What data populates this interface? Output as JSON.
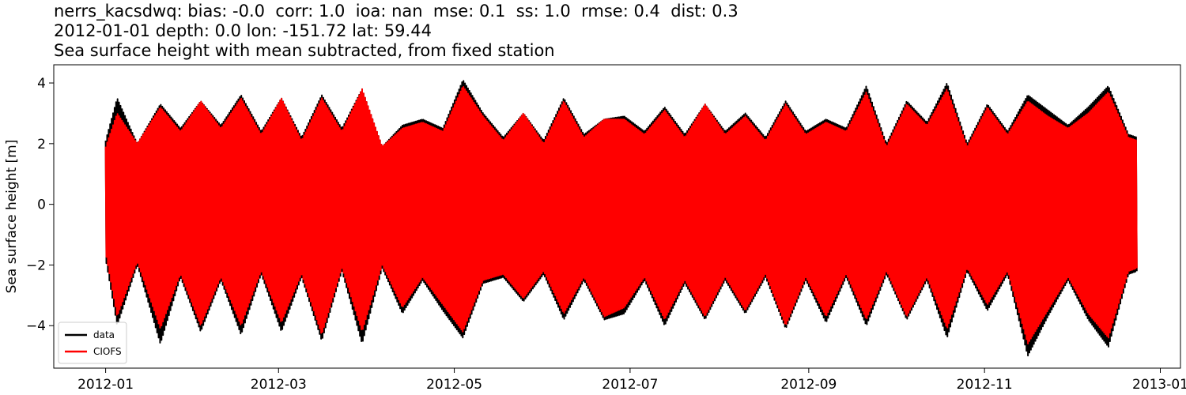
{
  "chart_data": {
    "type": "line",
    "title_lines": [
      "nerrs_kacsdwq: bias: -0.0  corr: 1.0  ioa: nan  mse: 0.1  ss: 1.0  rmse: 0.4  dist: 0.3",
      "2012-01-01 depth: 0.0 lon: -151.72 lat: 59.44",
      "Sea surface height with mean subtracted, from fixed station"
    ],
    "xlabel": "",
    "ylabel": "Sea surface height [m]",
    "x_range": [
      "2011-12-14",
      "2013-01-08"
    ],
    "ylim": [
      -5.4,
      4.6
    ],
    "x_tick_labels": [
      "2012-01",
      "2012-03",
      "2012-05",
      "2012-07",
      "2012-09",
      "2012-11",
      "2013-01"
    ],
    "x_tick_dates": [
      "2012-01-01",
      "2012-03-01",
      "2012-05-01",
      "2012-07-01",
      "2012-09-01",
      "2012-11-01",
      "2013-01-01"
    ],
    "y_ticks": [
      -4,
      -2,
      0,
      2,
      4
    ],
    "y_tick_labels": [
      "−4",
      "−2",
      "0",
      "2",
      "4"
    ],
    "grid": false,
    "legend": {
      "position": "bottom-left"
    },
    "series": [
      {
        "name": "data",
        "color": "#000000",
        "envelope_dates": [
          "2012-01-01",
          "2012-01-05",
          "2012-01-12",
          "2012-01-20",
          "2012-01-27",
          "2012-02-03",
          "2012-02-10",
          "2012-02-17",
          "2012-02-24",
          "2012-03-02",
          "2012-03-09",
          "2012-03-16",
          "2012-03-23",
          "2012-03-30",
          "2012-04-06",
          "2012-04-13",
          "2012-04-20",
          "2012-04-27",
          "2012-05-04",
          "2012-05-11",
          "2012-05-18",
          "2012-05-25",
          "2012-06-01",
          "2012-06-08",
          "2012-06-15",
          "2012-06-22",
          "2012-06-29",
          "2012-07-06",
          "2012-07-13",
          "2012-07-20",
          "2012-07-27",
          "2012-08-03",
          "2012-08-10",
          "2012-08-17",
          "2012-08-24",
          "2012-08-31",
          "2012-09-07",
          "2012-09-14",
          "2012-09-21",
          "2012-09-28",
          "2012-10-05",
          "2012-10-12",
          "2012-10-19",
          "2012-10-26",
          "2012-11-02",
          "2012-11-09",
          "2012-11-16",
          "2012-11-23",
          "2012-11-30",
          "2012-12-07",
          "2012-12-14",
          "2012-12-21",
          "2012-12-24"
        ],
        "upper": [
          2.1,
          3.5,
          2.0,
          3.3,
          2.5,
          3.4,
          2.6,
          3.6,
          2.4,
          3.5,
          2.2,
          3.6,
          2.5,
          3.8,
          1.9,
          2.6,
          2.8,
          2.5,
          4.1,
          3.0,
          2.2,
          3.0,
          2.1,
          3.5,
          2.3,
          2.8,
          2.9,
          2.4,
          3.2,
          2.3,
          3.3,
          2.4,
          3.0,
          2.2,
          3.4,
          2.4,
          2.8,
          2.5,
          3.9,
          2.0,
          3.4,
          2.7,
          4.0,
          2.0,
          3.3,
          2.4,
          3.6,
          3.1,
          2.6,
          3.2,
          3.9,
          2.3,
          2.2
        ],
        "lower": [
          -1.8,
          -4.0,
          -2.0,
          -4.6,
          -2.4,
          -4.2,
          -2.5,
          -4.3,
          -2.3,
          -4.2,
          -2.4,
          -4.5,
          -2.2,
          -4.6,
          -2.1,
          -3.6,
          -2.5,
          -3.5,
          -4.4,
          -2.6,
          -2.4,
          -3.2,
          -2.3,
          -3.8,
          -2.5,
          -3.8,
          -3.6,
          -2.5,
          -4.0,
          -2.6,
          -3.8,
          -2.5,
          -3.6,
          -2.4,
          -4.1,
          -2.5,
          -3.9,
          -2.4,
          -4.0,
          -2.3,
          -3.8,
          -2.5,
          -4.4,
          -2.2,
          -3.5,
          -2.3,
          -5.0,
          -3.7,
          -2.5,
          -3.8,
          -4.7,
          -2.3,
          -2.2
        ]
      },
      {
        "name": "CIOFS",
        "color": "#ff0000",
        "envelope_dates": [
          "2012-01-01",
          "2012-01-05",
          "2012-01-12",
          "2012-01-20",
          "2012-01-27",
          "2012-02-03",
          "2012-02-10",
          "2012-02-17",
          "2012-02-24",
          "2012-03-02",
          "2012-03-09",
          "2012-03-16",
          "2012-03-23",
          "2012-03-30",
          "2012-04-06",
          "2012-04-13",
          "2012-04-20",
          "2012-04-27",
          "2012-05-04",
          "2012-05-11",
          "2012-05-18",
          "2012-05-25",
          "2012-06-01",
          "2012-06-08",
          "2012-06-15",
          "2012-06-22",
          "2012-06-29",
          "2012-07-06",
          "2012-07-13",
          "2012-07-20",
          "2012-07-27",
          "2012-08-03",
          "2012-08-10",
          "2012-08-17",
          "2012-08-24",
          "2012-08-31",
          "2012-09-07",
          "2012-09-14",
          "2012-09-21",
          "2012-09-28",
          "2012-10-05",
          "2012-10-12",
          "2012-10-19",
          "2012-10-26",
          "2012-11-02",
          "2012-11-09",
          "2012-11-16",
          "2012-11-23",
          "2012-11-30",
          "2012-12-07",
          "2012-12-14",
          "2012-12-21",
          "2012-12-24"
        ],
        "upper": [
          1.9,
          3.0,
          2.0,
          3.2,
          2.4,
          3.4,
          2.5,
          3.5,
          2.3,
          3.5,
          2.1,
          3.5,
          2.4,
          3.8,
          1.9,
          2.5,
          2.7,
          2.4,
          3.9,
          2.9,
          2.1,
          3.0,
          2.0,
          3.4,
          2.2,
          2.8,
          2.8,
          2.3,
          3.1,
          2.2,
          3.3,
          2.3,
          2.9,
          2.1,
          3.3,
          2.3,
          2.7,
          2.4,
          3.7,
          1.9,
          3.3,
          2.6,
          3.8,
          1.9,
          3.2,
          2.3,
          3.4,
          2.9,
          2.5,
          3.0,
          3.7,
          2.2,
          2.1
        ],
        "lower": [
          -1.6,
          -3.7,
          -1.9,
          -4.1,
          -2.3,
          -4.0,
          -2.4,
          -4.0,
          -2.2,
          -3.9,
          -2.3,
          -4.3,
          -2.1,
          -4.2,
          -2.0,
          -3.4,
          -2.4,
          -3.3,
          -4.2,
          -2.5,
          -2.3,
          -3.1,
          -2.2,
          -3.6,
          -2.4,
          -3.7,
          -3.4,
          -2.4,
          -3.8,
          -2.5,
          -3.7,
          -2.4,
          -3.5,
          -2.3,
          -4.0,
          -2.4,
          -3.7,
          -2.3,
          -3.8,
          -2.2,
          -3.7,
          -2.4,
          -4.1,
          -2.1,
          -3.3,
          -2.2,
          -4.6,
          -3.5,
          -2.4,
          -3.6,
          -4.4,
          -2.2,
          -2.1
        ]
      }
    ]
  }
}
